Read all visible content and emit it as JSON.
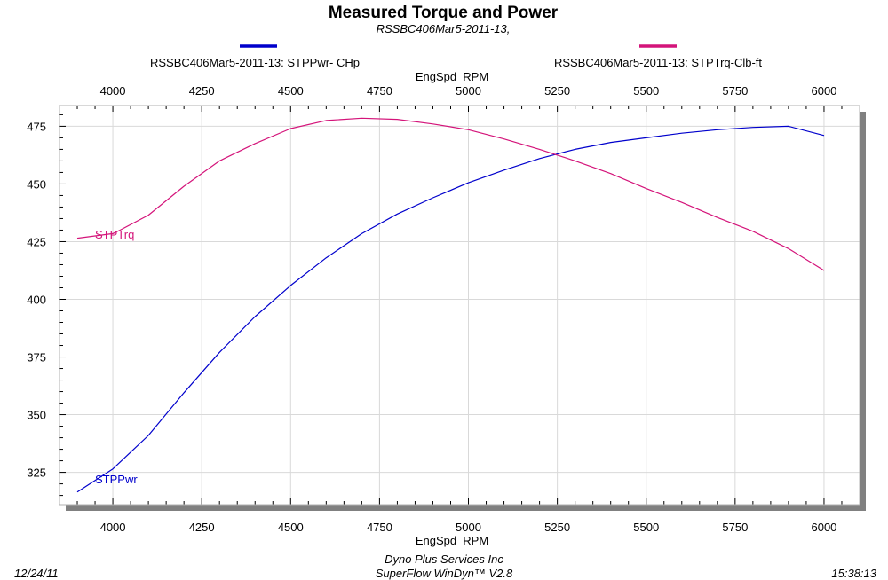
{
  "colors": {
    "power_series": "#0000cc",
    "torque_series": "#d4147a",
    "grid": "#d9d9d9",
    "panel_shadow": "#808080",
    "text": "#000000",
    "background": "#ffffff"
  },
  "header": {
    "title": "Measured Torque and Power",
    "subtitle": "RSSBC406Mar5-2011-13,"
  },
  "footer": {
    "date": "12/24/11",
    "company": "Dyno Plus Services Inc",
    "software": "SuperFlow WinDyn™ V2.8",
    "time": "15:38:13"
  },
  "chart_data": {
    "type": "line",
    "title": "Measured Torque and Power",
    "subtitle": "RSSBC406Mar5-2011-13,",
    "xlabel": "EngSpd  RPM",
    "ylabel": "",
    "xlim": [
      3850,
      6100
    ],
    "ylim": [
      311,
      484
    ],
    "x_ticks": [
      4000,
      4250,
      4500,
      4750,
      5000,
      5250,
      5500,
      5750,
      6000
    ],
    "y_ticks": [
      325,
      350,
      375,
      400,
      425,
      450,
      475
    ],
    "x_ticks_top": true,
    "grid": true,
    "legend": "top",
    "series": [
      {
        "name": "RSSBC406Mar5-2011-13: STPPwr- CHp",
        "label": "STPPwr",
        "color": "#0000cc",
        "x": [
          3900,
          4000,
          4100,
          4200,
          4300,
          4400,
          4500,
          4600,
          4700,
          4800,
          4900,
          5000,
          5100,
          5200,
          5300,
          5400,
          5500,
          5600,
          5700,
          5800,
          5900,
          6000
        ],
        "values": [
          316.5,
          326.5,
          341,
          359.5,
          377,
          392.5,
          406,
          418,
          428.5,
          437,
          444,
          450.5,
          456,
          461,
          465,
          468,
          470,
          472,
          473.5,
          474.5,
          475,
          471
        ]
      },
      {
        "name": "RSSBC406Mar5-2011-13: STPTrq-Clb-ft",
        "label": "STPTrq",
        "color": "#d4147a",
        "x": [
          3900,
          4000,
          4020,
          4100,
          4200,
          4300,
          4400,
          4500,
          4600,
          4700,
          4800,
          4900,
          5000,
          5100,
          5200,
          5300,
          5400,
          5500,
          5600,
          5700,
          5800,
          5900,
          6000
        ],
        "values": [
          426.5,
          428.5,
          430,
          436.5,
          449,
          460,
          467.5,
          474,
          477.5,
          478.5,
          478,
          476,
          473.5,
          469.5,
          465,
          460,
          454.5,
          448,
          442,
          435.5,
          429.5,
          422,
          412.5
        ]
      }
    ]
  }
}
